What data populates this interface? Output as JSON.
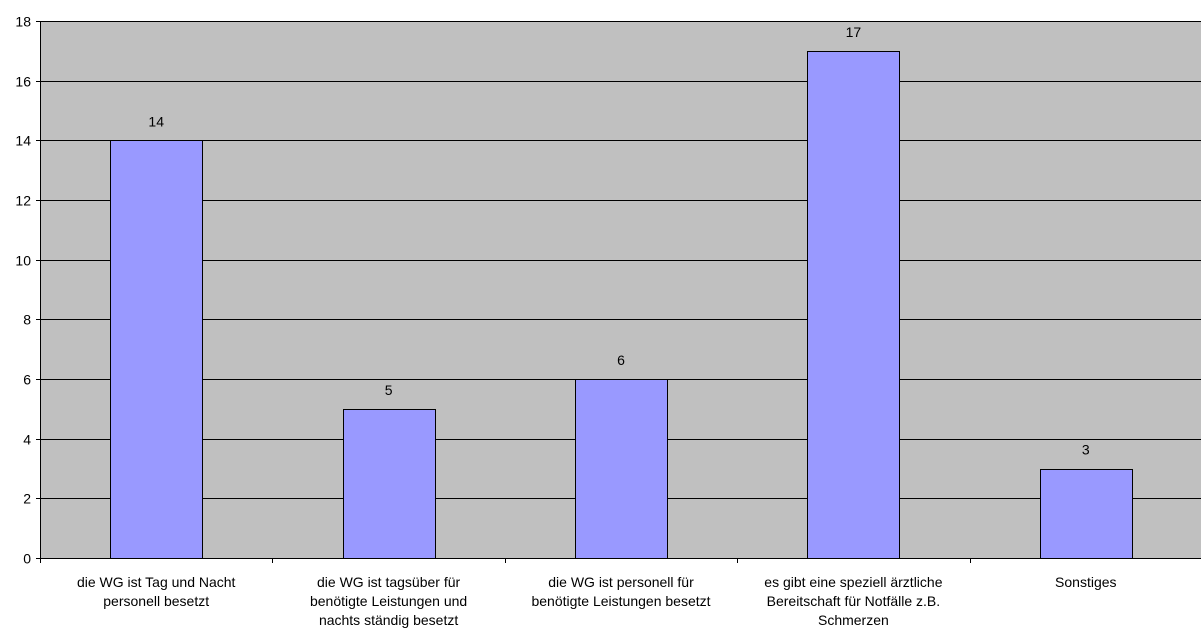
{
  "chart_data": {
    "type": "bar",
    "categories": [
      [
        "die WG ist Tag und Nacht",
        "personell besetzt"
      ],
      [
        "die WG ist tagsüber für",
        "benötigte Leistungen und",
        "nachts ständig besetzt"
      ],
      [
        "die WG ist personell für",
        "benötigte Leistungen besetzt"
      ],
      [
        "es gibt eine speziell ärztliche",
        "Bereitschaft für Notfälle z.B.",
        "Schmerzen"
      ],
      [
        "Sonstiges"
      ]
    ],
    "values": [
      14,
      5,
      6,
      17,
      3
    ],
    "data_labels": [
      "14",
      "5",
      "6",
      "17",
      "3"
    ],
    "ylim": [
      0,
      18
    ],
    "yticks": [
      0,
      2,
      4,
      6,
      8,
      10,
      12,
      14,
      16,
      18
    ],
    "ytick_labels": [
      "0",
      "2",
      "4",
      "6",
      "8",
      "10",
      "12",
      "14",
      "16",
      "18"
    ],
    "title": "",
    "xlabel": "",
    "ylabel": "",
    "grid": true,
    "legend": "none",
    "colors": {
      "plot_background": "#c0c0c0",
      "bar_fill": "#9999ff",
      "bar_stroke": "#000000",
      "gridline": "#000000",
      "text": "#000000"
    }
  }
}
